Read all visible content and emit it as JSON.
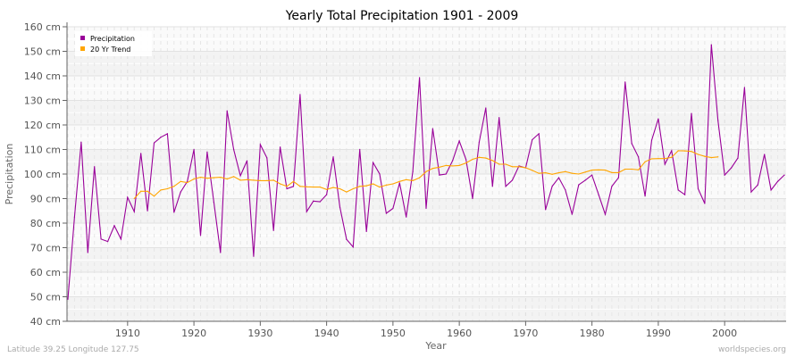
{
  "chart_data": {
    "type": "line",
    "title": "Yearly Total Precipitation 1901 - 2009",
    "xlabel": "Year",
    "ylabel": "Precipitation",
    "xlim": [
      1901,
      2009
    ],
    "ylim": [
      40,
      160
    ],
    "yticks": [
      40,
      50,
      60,
      70,
      80,
      90,
      100,
      110,
      120,
      130,
      140,
      150,
      160
    ],
    "ytick_labels": [
      "40 cm",
      "50 cm",
      "60 cm",
      "70 cm",
      "80 cm",
      "90 cm",
      "100 cm",
      "110 cm",
      "120 cm",
      "130 cm",
      "140 cm",
      "150 cm",
      "160 cm"
    ],
    "xticks": [
      1910,
      1920,
      1930,
      1940,
      1950,
      1960,
      1970,
      1980,
      1990,
      2000
    ],
    "xtick_labels": [
      "1910",
      "1920",
      "1930",
      "1940",
      "1950",
      "1960",
      "1970",
      "1980",
      "1990",
      "2000"
    ],
    "grid": true,
    "legend_position": "top-left",
    "series": [
      {
        "name": "Precipitation",
        "color": "#990099",
        "x_start": 1901,
        "values": [
          49,
          82.5,
          113,
          68,
          103,
          73.5,
          72.5,
          79,
          73.5,
          90.5,
          84.7,
          108.4,
          85,
          112.7,
          115,
          116.4,
          84.4,
          92.7,
          97,
          110,
          75,
          109,
          88.5,
          68,
          125.8,
          110,
          99.3,
          105.4,
          66.5,
          112,
          106.6,
          77,
          111,
          94,
          95,
          132.4,
          84.7,
          89,
          88.7,
          91.6,
          107,
          86.5,
          73.4,
          70.3,
          110,
          76.6,
          104.7,
          100,
          84,
          86,
          96.4,
          82.5,
          101,
          139.3,
          86,
          118.5,
          99.6,
          100,
          105.5,
          113.5,
          106,
          90,
          113,
          126.9,
          95,
          123,
          95,
          97.5,
          103.3,
          102.5,
          114,
          116.4,
          85.5,
          95,
          98.5,
          93.5,
          83.6,
          95.6,
          97.5,
          99.6,
          91.6,
          83.6,
          95,
          98.5,
          137.5,
          112.4,
          107,
          91,
          113.8,
          122.5,
          104,
          109.5,
          93.5,
          91.6,
          124.7,
          94,
          88,
          152.7,
          121.8,
          99.6,
          102.5,
          106.5,
          135.3,
          92.7,
          95.6,
          108,
          93.5,
          97,
          99.6
        ]
      },
      {
        "name": "20 Yr Trend",
        "color": "#ffa500",
        "x_start": 1911,
        "values": [
          90,
          93,
          93,
          91,
          93.5,
          94,
          95,
          97,
          96.5,
          98,
          98.7,
          98.3,
          98.5,
          98.7,
          98,
          99,
          97.5,
          97.7,
          97.5,
          97.3,
          97.3,
          97.5,
          96,
          95,
          97,
          95,
          94.8,
          94.7,
          94.7,
          93.7,
          94.5,
          94,
          92.7,
          94,
          95,
          95.2,
          96,
          94.7,
          95.5,
          96,
          97,
          97.7,
          97.3,
          98.5,
          101,
          102.3,
          102.8,
          103.5,
          103.3,
          103.5,
          104.5,
          106,
          106.8,
          106.5,
          105.5,
          104,
          104,
          103,
          103,
          102.6,
          101.5,
          100.3,
          100.5,
          99.9,
          100.5,
          101,
          100.3,
          100,
          100.8,
          101.6,
          101.7,
          101.6,
          100.6,
          100.6,
          102,
          102,
          101.7,
          105,
          106.2,
          106.3,
          106.3,
          106.8,
          109.5,
          109.4,
          109.2,
          108,
          107.2,
          106.7,
          107
        ]
      }
    ]
  },
  "footer": {
    "location": "Latitude 39.25 Longitude 127.75",
    "source": "worldspecies.org"
  }
}
